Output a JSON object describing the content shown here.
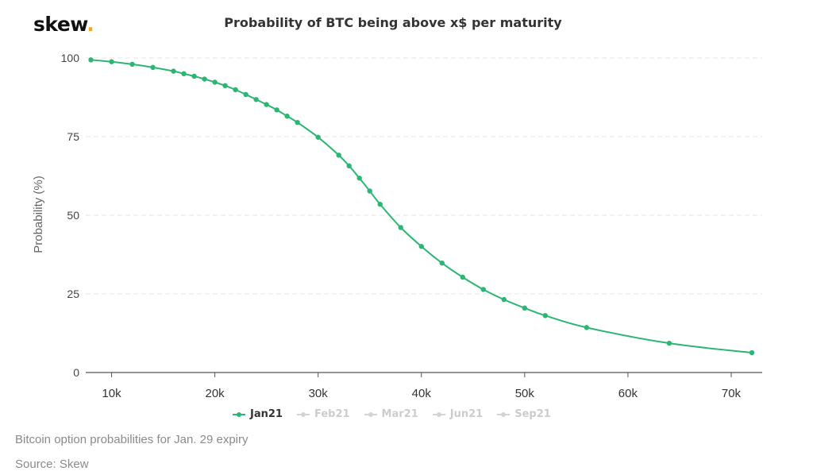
{
  "logo": {
    "text": "skew",
    "dot": "."
  },
  "caption": "Bitcoin option probabilities for Jan. 29 expiry",
  "source": "Source: Skew",
  "colors": {
    "active": "#2bb673",
    "inactive": "#d4d4d4",
    "grid": "#e6e6e6",
    "axis": "#555555",
    "ylabel": "#666666"
  },
  "chart_data": {
    "type": "line",
    "title": "Probability of BTC being above x$ per maturity",
    "xlabel": "",
    "ylabel": "Probability (%)",
    "xlim": [
      7500,
      73000
    ],
    "ylim": [
      0,
      100
    ],
    "x_ticks": [
      10000,
      20000,
      30000,
      40000,
      50000,
      60000,
      70000
    ],
    "x_tick_labels": [
      "10k",
      "20k",
      "30k",
      "40k",
      "50k",
      "60k",
      "70k"
    ],
    "y_ticks": [
      0,
      25,
      50,
      75,
      100
    ],
    "y_tick_labels": [
      "0",
      "25",
      "50",
      "75",
      "100"
    ],
    "grid": true,
    "legend_position": "bottom-center",
    "series": [
      {
        "name": "Jan21",
        "active": true,
        "x": [
          8000,
          10000,
          12000,
          14000,
          16000,
          17000,
          18000,
          19000,
          20000,
          21000,
          22000,
          23000,
          24000,
          25000,
          26000,
          27000,
          28000,
          30000,
          32000,
          33000,
          34000,
          35000,
          36000,
          38000,
          40000,
          42000,
          44000,
          46000,
          48000,
          50000,
          52000,
          56000,
          64000,
          72000
        ],
        "values": [
          99.4,
          98.8,
          98.0,
          97.0,
          95.8,
          95.0,
          94.2,
          93.3,
          92.3,
          91.2,
          89.9,
          88.4,
          86.8,
          85.2,
          83.5,
          81.5,
          79.5,
          74.8,
          69.1,
          65.7,
          61.8,
          57.7,
          53.5,
          46.1,
          40.1,
          34.8,
          30.3,
          26.4,
          23.2,
          20.5,
          18.1,
          14.3,
          9.3,
          6.3
        ]
      },
      {
        "name": "Feb21",
        "active": false
      },
      {
        "name": "Mar21",
        "active": false
      },
      {
        "name": "Jun21",
        "active": false
      },
      {
        "name": "Sep21",
        "active": false
      }
    ]
  }
}
